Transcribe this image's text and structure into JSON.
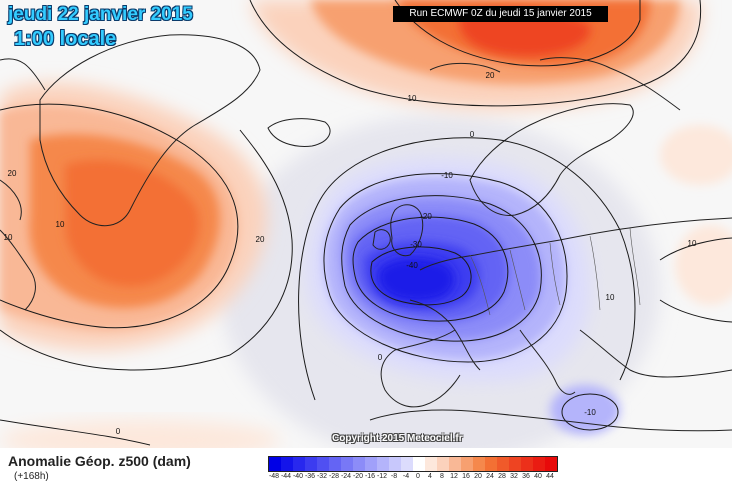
{
  "header": {
    "date": "jeudi 22 janvier 2015",
    "time": "1:00 locale",
    "run": "Run ECMWF 0Z du jeudi 15 janvier 2015"
  },
  "watermark": "Copyright 2015 Meteociel.fr",
  "legend": {
    "title": "Anomalie Géop. z500 (dam)",
    "subtitle": "(+168h)",
    "ticks": [
      "-48",
      "-44",
      "-40",
      "-36",
      "-32",
      "-28",
      "-24",
      "-20",
      "-16",
      "-12",
      "-8",
      "-4",
      "0",
      "4",
      "8",
      "12",
      "16",
      "20",
      "24",
      "28",
      "32",
      "36",
      "40",
      "44"
    ],
    "colors": [
      "#0000e6",
      "#1414ea",
      "#2828ee",
      "#3c3cf0",
      "#5050f2",
      "#6464f4",
      "#7878f6",
      "#8c8cf8",
      "#a0a0fa",
      "#b4b4fb",
      "#c8c8fc",
      "#dcdcfd",
      "#ffffff",
      "#fde8dc",
      "#fbd2bc",
      "#f9b896",
      "#f7a070",
      "#f5884c",
      "#f37034",
      "#f05a2a",
      "#ee4422",
      "#ec301a",
      "#ea1c12",
      "#e80a0a"
    ]
  },
  "map": {
    "contour_labels": [
      "20",
      "10",
      "20",
      "10",
      "20",
      "0",
      "-10",
      "-20",
      "-30",
      "-40",
      "10",
      "0",
      "10",
      "-10",
      "0",
      "10"
    ],
    "colors": {
      "land_outline": "#222222",
      "contour": "#1a1a1a",
      "background": "#f5f5f5"
    }
  }
}
